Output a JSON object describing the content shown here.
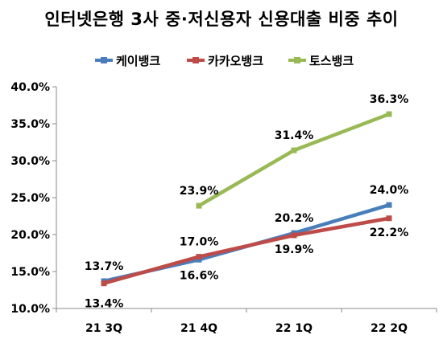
{
  "chart_data": {
    "type": "line",
    "title": "인터넷은행 3사 중·저신용자 신용대출 비중 추이",
    "categories": [
      "21 3Q",
      "21 4Q",
      "22 1Q",
      "22 2Q"
    ],
    "y_ticks": [
      "10.0%",
      "15.0%",
      "20.0%",
      "25.0%",
      "30.0%",
      "35.0%",
      "40.0%"
    ],
    "ylim": [
      10,
      40
    ],
    "grid": false,
    "legend_position": "top",
    "series": [
      {
        "name": "케이뱅크",
        "color": "#4a7ebb",
        "values": [
          13.7,
          16.6,
          20.2,
          24.0
        ],
        "labels": [
          "13.7%",
          "16.6%",
          "20.2%",
          "24.0%"
        ]
      },
      {
        "name": "카카오뱅크",
        "color": "#be4b48",
        "values": [
          13.4,
          17.0,
          19.9,
          22.2
        ],
        "labels": [
          "13.4%",
          "17.0%",
          "19.9%",
          "22.2%"
        ]
      },
      {
        "name": "토스뱅크",
        "color": "#98b954",
        "values": [
          null,
          23.9,
          31.4,
          36.3
        ],
        "labels": [
          null,
          "23.9%",
          "31.4%",
          "36.3%"
        ]
      }
    ]
  }
}
